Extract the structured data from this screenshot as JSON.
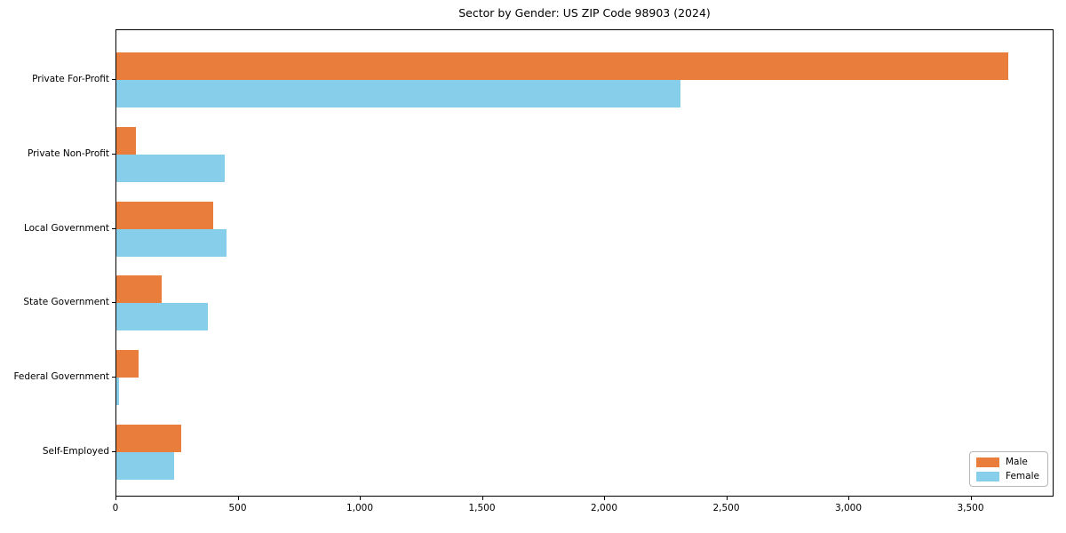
{
  "chart_data": {
    "type": "bar",
    "orientation": "horizontal",
    "title": "Sector by Gender: US ZIP Code 98903 (2024)",
    "categories": [
      "Private For-Profit",
      "Private Non-Profit",
      "Local Government",
      "State Government",
      "Federal Government",
      "Self-Employed"
    ],
    "series": [
      {
        "name": "Male",
        "color": "#e87d3c",
        "values": [
          3650,
          80,
          395,
          185,
          90,
          265
        ]
      },
      {
        "name": "Female",
        "color": "#87ceeb",
        "values": [
          2310,
          445,
          450,
          375,
          12,
          235
        ]
      }
    ],
    "xlabel": "",
    "ylabel": "",
    "xlim": [
      0,
      3840
    ],
    "xticks": [
      0,
      500,
      1000,
      1500,
      2000,
      2500,
      3000,
      3500
    ],
    "xtick_labels": [
      "0",
      "500",
      "1,000",
      "1,500",
      "2,000",
      "2,500",
      "3,000",
      "3,500"
    ],
    "grid": false,
    "legend": {
      "position": "lower right"
    },
    "frame": {
      "spine_color": "#000000",
      "background": "#ffffff"
    }
  }
}
